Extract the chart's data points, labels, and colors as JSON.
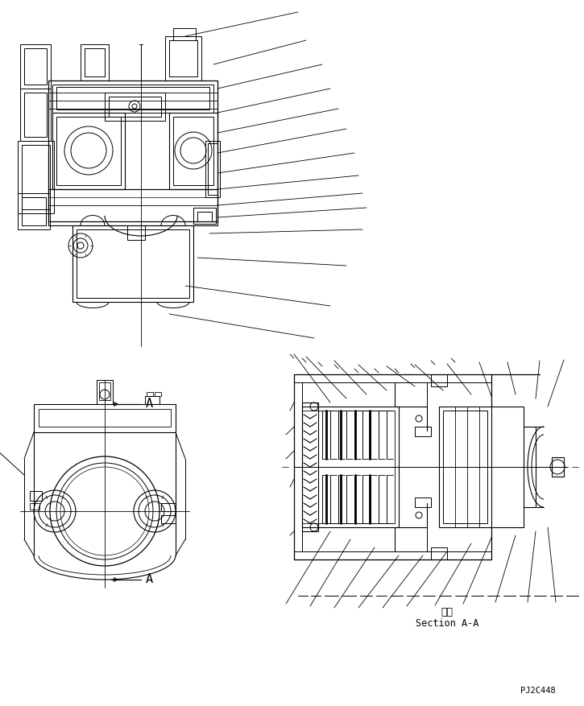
{
  "bg_color": "#ffffff",
  "line_color": "#000000",
  "text_color": "#000000",
  "section_label_chinese": "断面",
  "section_label_english": "Section A-A",
  "part_number": "PJ2C448",
  "fig_width": 7.25,
  "fig_height": 8.77,
  "dpi": 100
}
